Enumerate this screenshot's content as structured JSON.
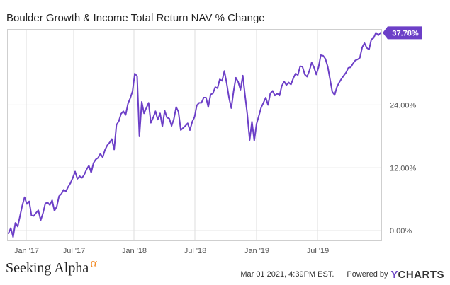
{
  "chart_title": "Boulder Growth & Income Total Return NAV % Change",
  "footer": {
    "brand": "Seeking Alpha",
    "brand_symbol": "α",
    "timestamp": "Mar 01 2021, 4:39PM EST.",
    "powered_by": "Powered by",
    "provider_mark": "Y",
    "provider_rest": "CHARTS"
  },
  "colors": {
    "series": "#6c3fc7",
    "grid": "#dddddd",
    "axis_text": "#555555",
    "brand_accent": "#f28c28"
  },
  "chart_data": {
    "type": "line",
    "title": "Boulder Growth & Income Total Return NAV % Change",
    "xlabel": "",
    "ylabel": "",
    "x_ticks": [
      "Jan '17",
      "Jul '17",
      "Jan '18",
      "Jul '18",
      "Jan '19",
      "Jul '19"
    ],
    "y_ticks": [
      0,
      12,
      24
    ],
    "y_tick_labels": [
      "0.00%",
      "12.00%",
      "24.00%"
    ],
    "ylim": [
      -2,
      38.5
    ],
    "grid": true,
    "last_value_label": "37.78%",
    "series": [
      {
        "values": [
          -0.5,
          0.5,
          -1.2,
          1.5,
          0.8,
          2.8,
          4.8,
          6.4,
          5.1,
          5.6,
          2.9,
          2.8,
          3.4,
          3.9,
          2.0,
          3.3,
          5.2,
          5.4,
          4.9,
          5.8,
          3.8,
          4.6,
          6.6,
          7.0,
          7.8,
          7.5,
          8.4,
          9.1,
          10.1,
          11.3,
          9.9,
          10.4,
          10.1,
          10.7,
          11.7,
          12.4,
          11.1,
          12.9,
          13.6,
          13.9,
          14.7,
          14.0,
          15.4,
          16.3,
          16.8,
          17.5,
          15.5,
          20.2,
          20.9,
          22.3,
          22.8,
          22.1,
          24.2,
          25.3,
          26.6,
          30.0,
          29.5,
          18.0,
          24.6,
          22.4,
          23.4,
          24.4,
          20.6,
          21.6,
          22.8,
          21.2,
          22.4,
          19.9,
          22.9,
          21.6,
          21.4,
          20.0,
          21.3,
          23.6,
          22.7,
          19.2,
          19.6,
          20.0,
          20.5,
          19.2,
          20.8,
          21.7,
          23.9,
          24.4,
          24.4,
          25.4,
          25.4,
          23.6,
          26.0,
          26.2,
          27.4,
          27.2,
          28.9,
          28.6,
          30.5,
          28.1,
          25.4,
          23.4,
          26.6,
          29.2,
          28.4,
          26.9,
          29.6,
          25.8,
          22.2,
          17.3,
          20.8,
          17.2,
          20.4,
          21.9,
          23.5,
          24.4,
          25.4,
          24.0,
          26.2,
          26.7,
          25.8,
          26.2,
          25.8,
          27.6,
          28.5,
          27.8,
          28.3,
          27.9,
          29.1,
          30.0,
          29.7,
          31.4,
          31.3,
          29.8,
          29.4,
          30.5,
          32.1,
          31.2,
          29.8,
          31.2,
          33.5,
          33.4,
          32.8,
          31.3,
          28.9,
          26.5,
          25.9,
          27.4,
          28.3,
          29.0,
          29.6,
          30.2,
          31.1,
          31.2,
          31.9,
          32.5,
          32.7,
          33.0,
          35.0,
          35.8,
          34.9,
          34.6,
          36.5,
          36.8,
          37.8,
          37.3,
          37.78
        ]
      }
    ]
  }
}
